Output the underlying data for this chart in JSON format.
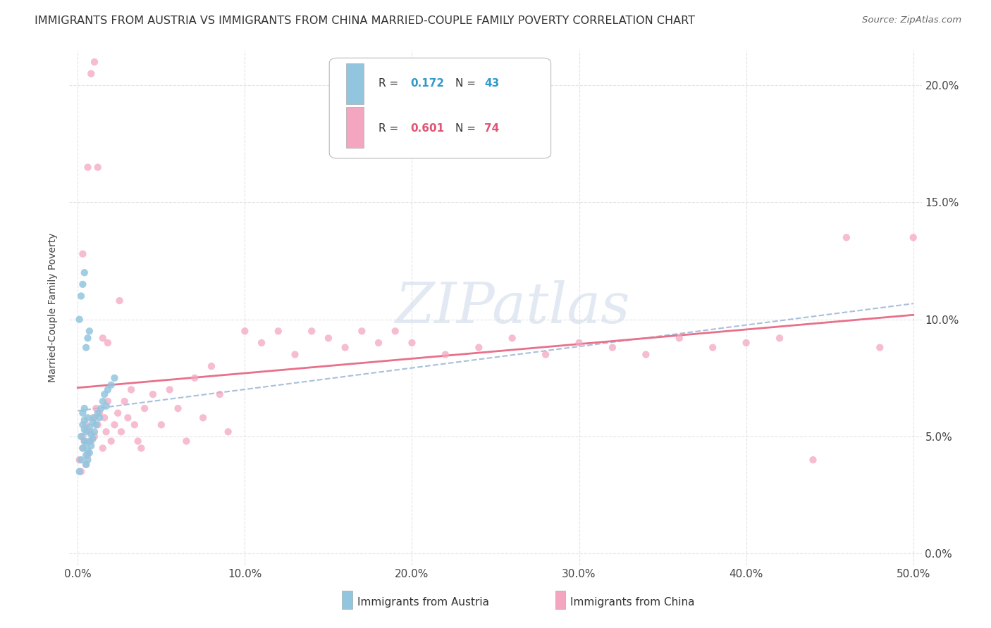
{
  "title": "IMMIGRANTS FROM AUSTRIA VS IMMIGRANTS FROM CHINA MARRIED-COUPLE FAMILY POVERTY CORRELATION CHART",
  "source": "Source: ZipAtlas.com",
  "ylabel": "Married-Couple Family Poverty",
  "xlim": [
    -0.005,
    0.505
  ],
  "ylim": [
    -0.005,
    0.215
  ],
  "xticks": [
    0.0,
    0.1,
    0.2,
    0.3,
    0.4,
    0.5
  ],
  "xticklabels": [
    "0.0%",
    "10.0%",
    "20.0%",
    "30.0%",
    "40.0%",
    "50.0%"
  ],
  "yticks": [
    0.0,
    0.05,
    0.1,
    0.15,
    0.2
  ],
  "yticklabels": [
    "0.0%",
    "5.0%",
    "10.0%",
    "15.0%",
    "20.0%"
  ],
  "austria_color": "#92c5de",
  "china_color": "#f4a6c0",
  "austria_line_color": "#92c5de",
  "china_line_color": "#e8708a",
  "background_color": "#ffffff",
  "grid_color": "#d8d8d8",
  "watermark_color": "#ccd8e8",
  "title_fontsize": 11.5,
  "tick_fontsize": 11,
  "austria_N": 43,
  "china_N": 74,
  "austria_R": "0.172",
  "china_R": "0.601",
  "austria_x": [
    0.001,
    0.002,
    0.002,
    0.003,
    0.003,
    0.003,
    0.004,
    0.004,
    0.004,
    0.004,
    0.005,
    0.005,
    0.005,
    0.005,
    0.006,
    0.006,
    0.006,
    0.007,
    0.007,
    0.007,
    0.008,
    0.008,
    0.009,
    0.009,
    0.01,
    0.01,
    0.011,
    0.012,
    0.013,
    0.014,
    0.015,
    0.016,
    0.017,
    0.018,
    0.02,
    0.022,
    0.001,
    0.002,
    0.003,
    0.004,
    0.005,
    0.006,
    0.007
  ],
  "austria_y": [
    0.035,
    0.04,
    0.05,
    0.045,
    0.055,
    0.06,
    0.048,
    0.053,
    0.057,
    0.062,
    0.038,
    0.042,
    0.047,
    0.052,
    0.04,
    0.044,
    0.058,
    0.043,
    0.048,
    0.054,
    0.046,
    0.051,
    0.049,
    0.056,
    0.052,
    0.058,
    0.055,
    0.06,
    0.058,
    0.062,
    0.065,
    0.068,
    0.063,
    0.07,
    0.072,
    0.075,
    0.1,
    0.11,
    0.115,
    0.12,
    0.088,
    0.092,
    0.095
  ],
  "china_x": [
    0.001,
    0.002,
    0.003,
    0.003,
    0.004,
    0.005,
    0.005,
    0.006,
    0.007,
    0.008,
    0.009,
    0.01,
    0.011,
    0.012,
    0.013,
    0.015,
    0.016,
    0.017,
    0.018,
    0.02,
    0.022,
    0.024,
    0.026,
    0.028,
    0.03,
    0.032,
    0.034,
    0.036,
    0.038,
    0.04,
    0.045,
    0.05,
    0.055,
    0.06,
    0.065,
    0.07,
    0.075,
    0.08,
    0.085,
    0.09,
    0.1,
    0.11,
    0.12,
    0.13,
    0.14,
    0.15,
    0.16,
    0.17,
    0.18,
    0.19,
    0.2,
    0.22,
    0.24,
    0.26,
    0.28,
    0.3,
    0.32,
    0.34,
    0.36,
    0.38,
    0.4,
    0.42,
    0.44,
    0.46,
    0.48,
    0.5,
    0.003,
    0.006,
    0.008,
    0.01,
    0.012,
    0.015,
    0.018,
    0.025
  ],
  "china_y": [
    0.04,
    0.035,
    0.05,
    0.045,
    0.048,
    0.038,
    0.055,
    0.042,
    0.052,
    0.048,
    0.058,
    0.05,
    0.062,
    0.055,
    0.06,
    0.045,
    0.058,
    0.052,
    0.065,
    0.048,
    0.055,
    0.06,
    0.052,
    0.065,
    0.058,
    0.07,
    0.055,
    0.048,
    0.045,
    0.062,
    0.068,
    0.055,
    0.07,
    0.062,
    0.048,
    0.075,
    0.058,
    0.08,
    0.068,
    0.052,
    0.095,
    0.09,
    0.095,
    0.085,
    0.095,
    0.092,
    0.088,
    0.095,
    0.09,
    0.095,
    0.09,
    0.085,
    0.088,
    0.092,
    0.085,
    0.09,
    0.088,
    0.085,
    0.092,
    0.088,
    0.09,
    0.092,
    0.04,
    0.135,
    0.088,
    0.135,
    0.128,
    0.165,
    0.205,
    0.21,
    0.165,
    0.092,
    0.09,
    0.108
  ]
}
